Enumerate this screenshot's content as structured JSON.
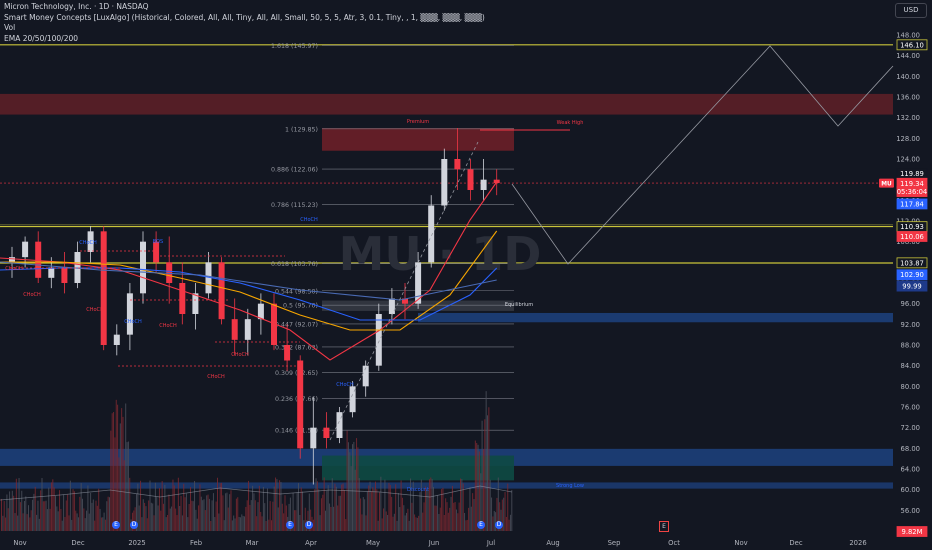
{
  "legend": {
    "title": "Micron Technology, Inc. · 1D · NASDAQ",
    "indicator": "Smart Money Concepts [LuxAlgo] (Historical, Colored, All, All, Tiny, All, All, Small, 50, 5, 5, Atr, 3, 0.1, Tiny, , 1, ▒▒▒, ▒▒▒, ▒▒▒)",
    "vol": "Vol",
    "ema": "EMA 20/50/100/200"
  },
  "currency_button": "USD",
  "watermark": "MU · 1D",
  "price_axis": {
    "ticks": [
      "148.00",
      "144.00",
      "140.00",
      "136.00",
      "132.00",
      "128.00",
      "124.00",
      "120.00",
      "116.00",
      "112.00",
      "108.00",
      "104.00",
      "100.00",
      "96.00",
      "92.00",
      "88.00",
      "84.00",
      "80.00",
      "76.00",
      "72.00",
      "68.00",
      "64.00",
      "60.00",
      "56.00",
      "52.00"
    ],
    "labels": [
      {
        "text": "146.10",
        "price": 146.1,
        "bg": "#131722",
        "fg": "#ffffff",
        "border": "#c9c43a"
      },
      {
        "text": "119.89",
        "price": 121.2,
        "bg": "#131722",
        "fg": "#ffffff",
        "border": "#131722"
      },
      {
        "text": "119.34",
        "price": 119.3,
        "bg": "#f23645",
        "fg": "#ffffff",
        "border": "#f23645"
      },
      {
        "text": "05:36:04",
        "price": 117.7,
        "bg": "#f23645",
        "fg": "#ffffff",
        "border": "#f23645"
      },
      {
        "text": "117.84",
        "price": 115.3,
        "bg": "#2962ff",
        "fg": "#ffffff",
        "border": "#2962ff"
      },
      {
        "text": "110.93",
        "price": 110.9,
        "bg": "#131722",
        "fg": "#ffffff",
        "border": "#c9c43a"
      },
      {
        "text": "110.06",
        "price": 109.0,
        "bg": "#f23645",
        "fg": "#ffffff",
        "border": "#f23645"
      },
      {
        "text": "103.87",
        "price": 103.9,
        "bg": "#131722",
        "fg": "#ffffff",
        "border": "#c9c43a"
      },
      {
        "text": "102.90",
        "price": 101.6,
        "bg": "#2962ff",
        "fg": "#ffffff",
        "border": "#2962ff"
      },
      {
        "text": "99.99",
        "price": 99.4,
        "bg": "#1e3a8a",
        "fg": "#ffffff",
        "border": "#1e3a8a"
      },
      {
        "text": "9.82M",
        "price": 51.9,
        "bg": "#f23645",
        "fg": "#ffffff",
        "border": "#f23645"
      }
    ],
    "symbol_tag": "MU"
  },
  "time_axis": [
    "Nov",
    "Dec",
    "2025",
    "Feb",
    "Mar",
    "Apr",
    "May",
    "Jun",
    "Jul",
    "Aug",
    "Sep",
    "Oct",
    "Nov",
    "Dec",
    "2026"
  ],
  "fib_labels": [
    {
      "text": "1.618 (145.97)",
      "price": 145.97
    },
    {
      "text": "1 (129.85)",
      "price": 129.85
    },
    {
      "text": "0.886 (122.06)",
      "price": 122.06
    },
    {
      "text": "0.786 (115.23)",
      "price": 115.23
    },
    {
      "text": "0.618 (103.76)",
      "price": 103.76
    },
    {
      "text": "0.544 (98.50)",
      "price": 98.5
    },
    {
      "text": "0.5 (95.70)",
      "price": 95.7
    },
    {
      "text": "0.447 (92.07)",
      "price": 92.07
    },
    {
      "text": "0.382 (87.63)",
      "price": 87.63
    },
    {
      "text": "0.309 (82.65)",
      "price": 82.65
    },
    {
      "text": "0.236 (77.66)",
      "price": 77.66
    },
    {
      "text": "0.146 (71.51)",
      "price": 71.51
    }
  ],
  "smc_labels": {
    "premium": "Premium",
    "equilibrium": "Equilibrium",
    "discount": "Discount",
    "weak_high": "Weak High",
    "strong_low": "Strong Low",
    "choch": "CHoCH",
    "bos": "BOS"
  },
  "events": {
    "earnings": "E",
    "dividend": "D",
    "future_earnings": "E"
  },
  "colors": {
    "background": "#131722",
    "up": "#d1d4dc",
    "down": "#f23645",
    "ema20": "#f23645",
    "ema50": "#f7a600",
    "ema100": "#2962ff",
    "ema200": "#4a6bb5",
    "fib": "#787b86",
    "zone_yellow": "#c9c43a"
  },
  "chart_data": {
    "type": "candlestick",
    "series": [
      {
        "date": "2024-10-28",
        "ohlc": [
          104,
          107,
          101,
          105
        ]
      },
      {
        "date": "2024-11-04",
        "ohlc": [
          105,
          109,
          103,
          108
        ]
      },
      {
        "date": "2024-11-11",
        "ohlc": [
          108,
          110,
          100,
          101
        ]
      },
      {
        "date": "2024-11-18",
        "ohlc": [
          101,
          105,
          99,
          103
        ]
      },
      {
        "date": "2024-11-25",
        "ohlc": [
          103,
          106,
          98,
          100
        ]
      },
      {
        "date": "2024-12-02",
        "ohlc": [
          100,
          108,
          99,
          106
        ]
      },
      {
        "date": "2024-12-09",
        "ohlc": [
          106,
          111,
          104,
          110
        ]
      },
      {
        "date": "2024-12-16",
        "ohlc": [
          110,
          111,
          87,
          88
        ]
      },
      {
        "date": "2024-12-23",
        "ohlc": [
          88,
          92,
          86,
          90
        ]
      },
      {
        "date": "2024-12-30",
        "ohlc": [
          90,
          100,
          87,
          98
        ]
      },
      {
        "date": "2025-01-06",
        "ohlc": [
          98,
          110,
          96,
          108
        ]
      },
      {
        "date": "2025-01-13",
        "ohlc": [
          108,
          110,
          102,
          104
        ]
      },
      {
        "date": "2025-01-20",
        "ohlc": [
          104,
          109,
          96,
          100
        ]
      },
      {
        "date": "2025-01-27",
        "ohlc": [
          100,
          104,
          92,
          94
        ]
      },
      {
        "date": "2025-02-03",
        "ohlc": [
          94,
          100,
          91,
          98
        ]
      },
      {
        "date": "2025-02-10",
        "ohlc": [
          98,
          106,
          97,
          104
        ]
      },
      {
        "date": "2025-02-17",
        "ohlc": [
          104,
          105,
          92,
          93
        ]
      },
      {
        "date": "2025-02-24",
        "ohlc": [
          93,
          97,
          86,
          89
        ]
      },
      {
        "date": "2025-03-03",
        "ohlc": [
          89,
          95,
          86,
          93
        ]
      },
      {
        "date": "2025-03-10",
        "ohlc": [
          93,
          98,
          90,
          96
        ]
      },
      {
        "date": "2025-03-17",
        "ohlc": [
          96,
          98,
          87,
          88
        ]
      },
      {
        "date": "2025-03-24",
        "ohlc": [
          88,
          92,
          83,
          85
        ]
      },
      {
        "date": "2025-03-31",
        "ohlc": [
          85,
          86,
          66,
          68
        ]
      },
      {
        "date": "2025-04-07",
        "ohlc": [
          68,
          78,
          61,
          72
        ]
      },
      {
        "date": "2025-04-14",
        "ohlc": [
          72,
          75,
          68,
          70
        ]
      },
      {
        "date": "2025-04-21",
        "ohlc": [
          70,
          76,
          69,
          75
        ]
      },
      {
        "date": "2025-04-28",
        "ohlc": [
          75,
          81,
          74,
          80
        ]
      },
      {
        "date": "2025-05-05",
        "ohlc": [
          80,
          85,
          78,
          84
        ]
      },
      {
        "date": "2025-05-12",
        "ohlc": [
          84,
          96,
          83,
          94
        ]
      },
      {
        "date": "2025-05-19",
        "ohlc": [
          94,
          99,
          92,
          97
        ]
      },
      {
        "date": "2025-05-26",
        "ohlc": [
          97,
          100,
          93,
          96
        ]
      },
      {
        "date": "2025-06-02",
        "ohlc": [
          96,
          106,
          95,
          104
        ]
      },
      {
        "date": "2025-06-09",
        "ohlc": [
          104,
          117,
          103,
          115
        ]
      },
      {
        "date": "2025-06-16",
        "ohlc": [
          115,
          126,
          114,
          124
        ]
      },
      {
        "date": "2025-06-23",
        "ohlc": [
          124,
          130,
          118,
          122
        ]
      },
      {
        "date": "2025-06-30",
        "ohlc": [
          122,
          124,
          116,
          118
        ]
      },
      {
        "date": "2025-07-07",
        "ohlc": [
          118,
          124,
          116,
          120
        ]
      },
      {
        "date": "2025-07-14",
        "ohlc": [
          120,
          122,
          117,
          119.34
        ]
      }
    ],
    "xlabel": "",
    "ylabel": "",
    "ylim": [
      50,
      150
    ]
  }
}
